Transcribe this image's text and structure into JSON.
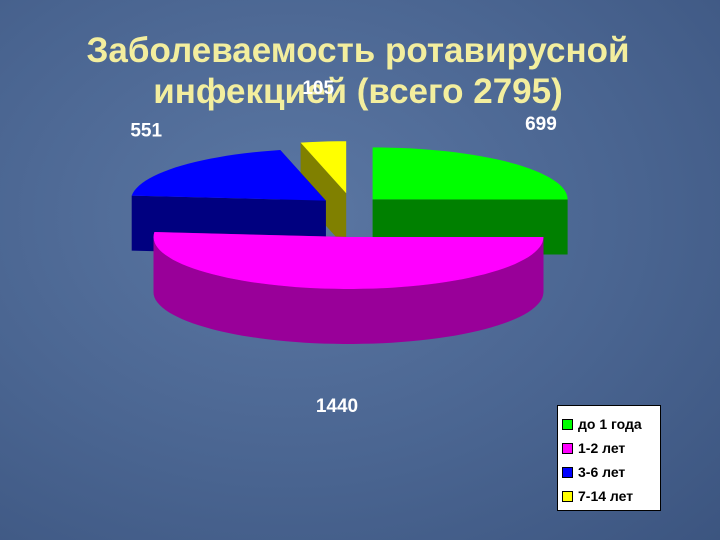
{
  "chart_data": {
    "type": "pie",
    "title": [
      "Заболеваемость ротавирусной",
      "инфекцией (всего 2795)"
    ],
    "categories": [
      "до 1 года",
      "1-2 лет",
      "3-6 лет",
      "7-14 лет"
    ],
    "values": [
      699,
      1440,
      551,
      105
    ],
    "colors": [
      "#00ff00",
      "#ff00ff",
      "#0000ff",
      "#ffff00"
    ],
    "legend": "bottom-right"
  }
}
